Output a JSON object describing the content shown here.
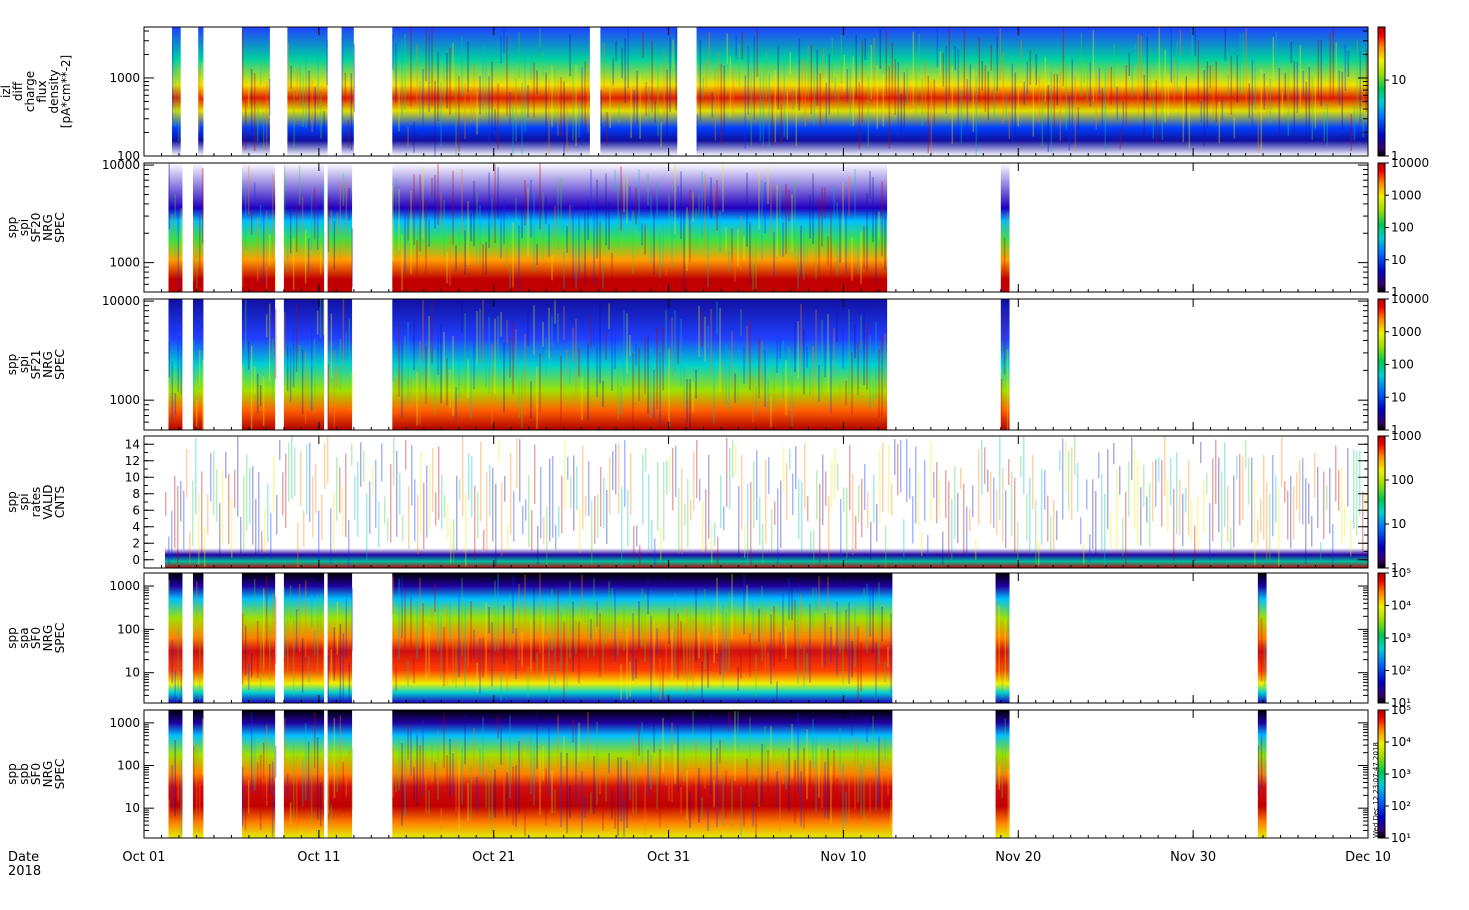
{
  "chart_data": {
    "type": "heatmap",
    "time_axis": {
      "ticks": [
        "Oct 01",
        "Oct 11",
        "Oct 21",
        "Oct 31",
        "Nov 10",
        "Nov 20",
        "Nov 30",
        "Dec 10"
      ],
      "range_days": [
        0,
        70
      ],
      "label_line1": "Date",
      "label_line2": "2018"
    },
    "panels": [
      {
        "id": "p1",
        "ylabel_lines": [
          "izl",
          "diff",
          "charge",
          "flux",
          "density",
          "[pA*cm**-2]"
        ],
        "y_scale": "log",
        "ylim": [
          100,
          4500
        ],
        "y_ticks": [
          "100",
          "1000"
        ],
        "cbar_ticks": [
          "1",
          "10"
        ],
        "cbar_range": [
          1,
          50
        ],
        "coverage_days": [
          [
            1.6,
            2.1
          ],
          [
            3.1,
            3.4
          ],
          [
            5.6,
            7.2
          ],
          [
            8.2,
            10.5
          ],
          [
            11.3,
            12.0
          ],
          [
            14.2,
            25.5
          ],
          [
            26.1,
            30.5
          ],
          [
            31.6,
            70.0
          ]
        ]
      },
      {
        "id": "p2",
        "ylabel_lines": [
          "spp",
          "spi",
          "SF20",
          "NRG",
          "SPEC"
        ],
        "y_scale": "log",
        "ylim": [
          500,
          10500
        ],
        "y_ticks": [
          "1000",
          "10000"
        ],
        "cbar_ticks": [
          "1",
          "10",
          "100",
          "1000",
          "10000"
        ],
        "cbar_range": [
          1,
          10000
        ],
        "coverage_days": [
          [
            1.4,
            2.2
          ],
          [
            2.8,
            3.4
          ],
          [
            5.6,
            7.5
          ],
          [
            8.0,
            10.3
          ],
          [
            10.5,
            11.9
          ],
          [
            14.2,
            42.5
          ],
          [
            49.0,
            49.5
          ]
        ]
      },
      {
        "id": "p3",
        "ylabel_lines": [
          "spp",
          "spi",
          "SF21",
          "NRG",
          "SPEC"
        ],
        "y_scale": "log",
        "ylim": [
          500,
          10500
        ],
        "y_ticks": [
          "1000",
          "10000"
        ],
        "cbar_ticks": [
          "1",
          "10",
          "100",
          "1000",
          "10000"
        ],
        "cbar_range": [
          1,
          10000
        ],
        "coverage_days": [
          [
            1.4,
            2.2
          ],
          [
            2.8,
            3.4
          ],
          [
            5.6,
            7.5
          ],
          [
            8.0,
            10.3
          ],
          [
            10.5,
            11.9
          ],
          [
            14.2,
            42.5
          ],
          [
            49.0,
            49.5
          ]
        ]
      },
      {
        "id": "p4",
        "ylabel_lines": [
          "spp",
          "spi",
          "rates",
          "VALID",
          "CNTS"
        ],
        "y_scale": "linear",
        "ylim": [
          -1,
          15
        ],
        "y_ticks": [
          "0",
          "2",
          "4",
          "6",
          "8",
          "10",
          "12",
          "14"
        ],
        "cbar_ticks": [
          "1",
          "10",
          "100",
          "1000"
        ],
        "cbar_range": [
          1,
          1000
        ],
        "coverage_days": [
          [
            1.2,
            70.0
          ]
        ]
      },
      {
        "id": "p5",
        "ylabel_lines": [
          "spp",
          "spa",
          "SF0",
          "NRG",
          "SPEC"
        ],
        "y_scale": "log",
        "ylim": [
          2,
          2000
        ],
        "y_ticks": [
          "10",
          "100",
          "1000"
        ],
        "cbar_ticks": [
          "10^1",
          "10^2",
          "10^3",
          "10^4",
          "10^5"
        ],
        "cbar_range": [
          10,
          100000
        ],
        "coverage_days": [
          [
            1.4,
            2.2
          ],
          [
            2.8,
            3.4
          ],
          [
            5.6,
            7.5
          ],
          [
            8.0,
            10.3
          ],
          [
            10.5,
            11.9
          ],
          [
            14.2,
            42.8
          ],
          [
            48.7,
            49.5
          ],
          [
            63.7,
            64.2
          ]
        ]
      },
      {
        "id": "p6",
        "ylabel_lines": [
          "spp",
          "spb",
          "SF0",
          "NRG",
          "SPEC"
        ],
        "y_scale": "log",
        "ylim": [
          2,
          2000
        ],
        "y_ticks": [
          "10",
          "100",
          "1000"
        ],
        "cbar_ticks": [
          "10^1",
          "10^2",
          "10^3",
          "10^4",
          "10^5"
        ],
        "cbar_range": [
          10,
          100000
        ],
        "coverage_days": [
          [
            1.4,
            2.2
          ],
          [
            2.8,
            3.4
          ],
          [
            5.6,
            7.5
          ],
          [
            8.0,
            10.3
          ],
          [
            10.5,
            11.9
          ],
          [
            14.2,
            42.8
          ],
          [
            48.7,
            49.5
          ],
          [
            63.7,
            64.2
          ]
        ]
      }
    ]
  },
  "footer": {
    "stamp": "Wed Dec 12 23:07:47 2018"
  }
}
